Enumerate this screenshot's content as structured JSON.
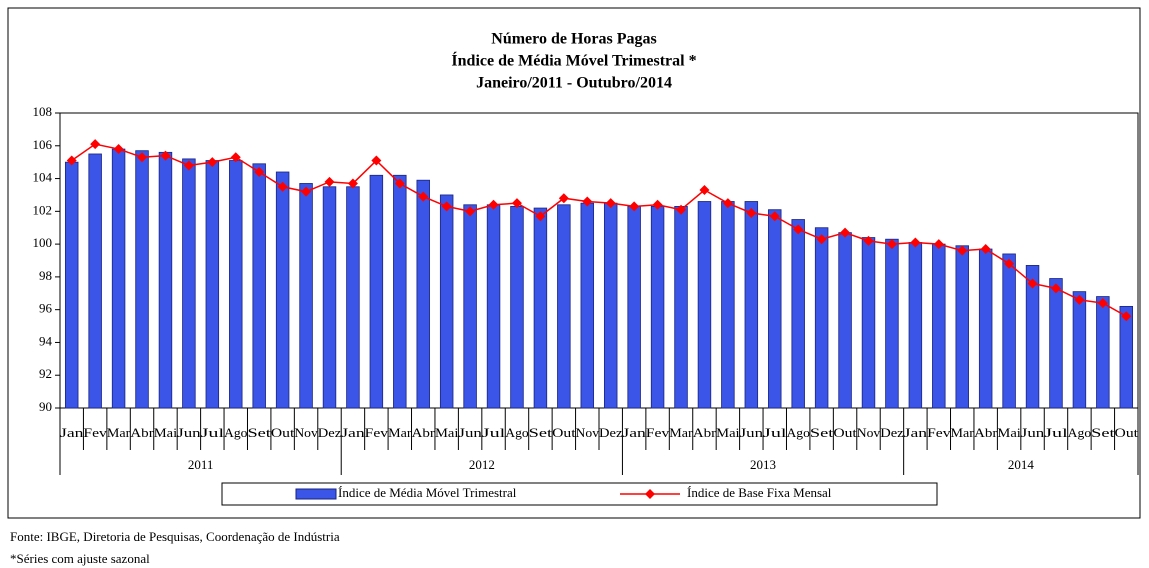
{
  "chart_data": {
    "type": "bar-line",
    "title": [
      "Número de Horas Pagas",
      "Índice de Média Móvel Trimestral *",
      "Janeiro/2011 - Outubro/2014"
    ],
    "categories": [
      "Jan",
      "Fev",
      "Mar",
      "Abr",
      "Mai",
      "Jun",
      "Jul",
      "Ago",
      "Set",
      "Out",
      "Nov",
      "Dez",
      "Jan",
      "Fev",
      "Mar",
      "Abr",
      "Mai",
      "Jun",
      "Jul",
      "Ago",
      "Set",
      "Out",
      "Nov",
      "Dez",
      "Jan",
      "Fev",
      "Mar",
      "Abr",
      "Mai",
      "Jun",
      "Jul",
      "Ago",
      "Set",
      "Out",
      "Nov",
      "Dez",
      "Jan",
      "Fev",
      "Mar",
      "Abr",
      "Mai",
      "Jun",
      "Jul",
      "Ago",
      "Set",
      "Out"
    ],
    "years": [
      "2011",
      "2012",
      "2013",
      "2014"
    ],
    "series": [
      {
        "name": "Índice de Média Móvel Trimestral",
        "type": "bar",
        "color": "#3a55e8",
        "values": [
          105.0,
          105.5,
          105.8,
          105.7,
          105.6,
          105.2,
          105.1,
          105.1,
          104.9,
          104.4,
          103.7,
          103.5,
          103.5,
          104.2,
          104.2,
          103.9,
          103.0,
          102.4,
          102.4,
          102.3,
          102.2,
          102.4,
          102.5,
          102.5,
          102.3,
          102.3,
          102.3,
          102.6,
          102.6,
          102.6,
          102.1,
          101.5,
          101.0,
          100.7,
          100.4,
          100.3,
          100.1,
          100.0,
          99.9,
          99.7,
          99.4,
          98.7,
          97.9,
          97.1,
          96.8,
          96.2
        ]
      },
      {
        "name": "Índice de Base Fixa Mensal",
        "type": "line",
        "color": "#ff0000",
        "values": [
          105.1,
          106.1,
          105.8,
          105.3,
          105.4,
          104.8,
          105.0,
          105.3,
          104.4,
          103.5,
          103.2,
          103.8,
          103.7,
          105.1,
          103.7,
          102.9,
          102.3,
          102.0,
          102.4,
          102.5,
          101.7,
          102.8,
          102.6,
          102.5,
          102.3,
          102.4,
          102.1,
          103.3,
          102.5,
          101.9,
          101.7,
          100.9,
          100.3,
          100.7,
          100.2,
          100.0,
          100.1,
          100.0,
          99.6,
          99.7,
          98.8,
          97.6,
          97.3,
          96.6,
          96.4,
          95.6
        ]
      }
    ],
    "ylim": [
      90,
      108
    ],
    "yticks": [
      90,
      92,
      94,
      96,
      98,
      100,
      102,
      104,
      106,
      108
    ],
    "grid": false,
    "notes": [
      "Fonte: IBGE, Diretoria de Pesquisas, Coordenação de Indústria",
      "*Séries com ajuste sazonal"
    ]
  }
}
